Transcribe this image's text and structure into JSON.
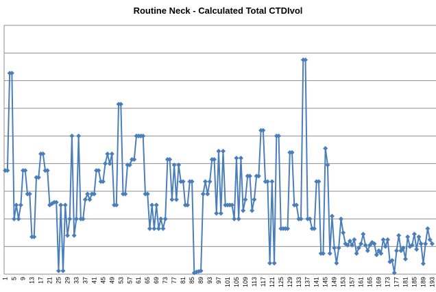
{
  "chart_data": {
    "type": "line",
    "title": "Routine Neck - Calculated Total CTDIvol",
    "categories": [
      1,
      null,
      null,
      null,
      5,
      null,
      null,
      null,
      9,
      null,
      null,
      null,
      13,
      null,
      null,
      null,
      17,
      null,
      null,
      null,
      21,
      null,
      null,
      null,
      25,
      null,
      null,
      null,
      29,
      null,
      null,
      null,
      33,
      null,
      null,
      null,
      37,
      null,
      null,
      null,
      41,
      null,
      null,
      null,
      45,
      null,
      null,
      null,
      49,
      null,
      null,
      null,
      53,
      null,
      null,
      null,
      57,
      null,
      null,
      null,
      61,
      null,
      null,
      null,
      65,
      null,
      null,
      null,
      69,
      null,
      null,
      null,
      73,
      null,
      null,
      null,
      77,
      null,
      null,
      null,
      81,
      null,
      null,
      null,
      85,
      null,
      null,
      null,
      89,
      null,
      null,
      null,
      93,
      null,
      null,
      null,
      97,
      null,
      null,
      null,
      101,
      null,
      null,
      null,
      105,
      null,
      null,
      null,
      109,
      null,
      null,
      null,
      113,
      null,
      null,
      null,
      117,
      null,
      null,
      null,
      121,
      null,
      null,
      null,
      125,
      null,
      null,
      null,
      129,
      null,
      null,
      null,
      133,
      null,
      null,
      null,
      137,
      null,
      null,
      null,
      141,
      null,
      null,
      null,
      145,
      null,
      null,
      null,
      149,
      null,
      null,
      null,
      153,
      null,
      null,
      null,
      157,
      null,
      null,
      null,
      161,
      null,
      null,
      null,
      165,
      null,
      null,
      null,
      169,
      null,
      null,
      null,
      173,
      null,
      null,
      null,
      177,
      null,
      null,
      null,
      181,
      null,
      null,
      null,
      185,
      null,
      null,
      null,
      189,
      null,
      null,
      null,
      193
    ],
    "values": [
      3.75,
      3.75,
      7.27,
      7.27,
      2.0,
      2.5,
      2.0,
      2.5,
      3.75,
      3.75,
      2.9,
      2.9,
      1.35,
      1.35,
      3.5,
      3.5,
      4.35,
      4.35,
      3.75,
      3.75,
      2.5,
      2.55,
      2.6,
      2.6,
      0.12,
      2.5,
      0.12,
      2.5,
      1.4,
      2.0,
      5.0,
      1.4,
      2.0,
      5.0,
      2.0,
      2.0,
      2.7,
      2.9,
      2.7,
      2.9,
      2.9,
      3.75,
      3.75,
      3.35,
      3.35,
      4.0,
      4.35,
      4.0,
      4.35,
      2.5,
      2.5,
      6.15,
      6.15,
      2.9,
      2.9,
      3.95,
      3.95,
      4.15,
      4.15,
      5.0,
      5.0,
      5.0,
      5.0,
      2.9,
      2.9,
      1.65,
      2.5,
      1.65,
      2.5,
      1.65,
      2.0,
      1.65,
      2.0,
      4.15,
      4.15,
      2.7,
      3.95,
      2.7,
      3.95,
      3.35,
      3.35,
      2.5,
      2.5,
      3.35,
      3.35,
      0.05,
      0.08,
      0.1,
      0.12,
      2.9,
      3.35,
      2.9,
      3.35,
      4.15,
      4.15,
      2.2,
      4.45,
      2.2,
      4.45,
      2.5,
      2.5,
      2.5,
      2.5,
      2.0,
      4.2,
      2.0,
      4.2,
      2.3,
      2.7,
      3.55,
      3.55,
      2.3,
      2.7,
      3.55,
      3.55,
      5.2,
      5.2,
      3.35,
      3.35,
      0.4,
      3.35,
      0.4,
      5.0,
      5.0,
      1.65,
      1.65,
      1.65,
      1.65,
      4.4,
      4.4,
      2.5,
      2.5,
      2.0,
      2.0,
      7.75,
      7.75,
      2.0,
      2.0,
      1.65,
      1.65,
      3.35,
      3.35,
      0.75,
      0.75,
      4.55,
      3.95,
      0.75,
      2.1,
      0.95,
      0.4,
      0.95,
      2.0,
      1.5,
      1.1,
      1.05,
      1.2,
      1.05,
      1.25,
      0.75,
      0.95,
      1.1,
      1.45,
      1.05,
      0.85,
      1.05,
      1.15,
      1.1,
      0.7,
      0.85,
      0.75,
      1.25,
      1.0,
      1.25,
      0.45,
      0.5,
      0.05,
      0.85,
      1.4,
      0.85,
      0.95,
      0.55,
      1.35,
      1.0,
      1.05,
      1.45,
      0.9,
      1.35,
      1.1,
      0.38,
      1.1,
      1.65,
      1.25,
      1.1
    ],
    "color": "#4a7ebb",
    "ylim": [
      0,
      9
    ],
    "yticks": [
      0,
      1,
      2,
      3,
      4,
      5,
      6,
      7,
      8,
      9
    ],
    "grid": true
  }
}
